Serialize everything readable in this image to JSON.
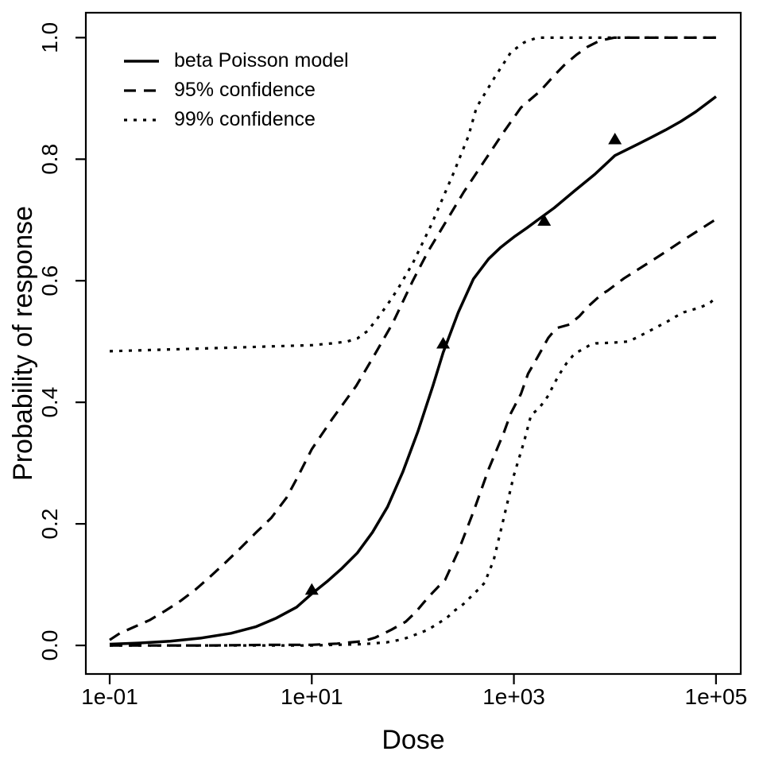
{
  "figure": {
    "background_color": "#ffffff",
    "foreground_color": "#000000"
  },
  "chart_data": {
    "type": "line",
    "title": "",
    "xlabel": "Dose",
    "ylabel": "Probability of response",
    "x_scale": "log10",
    "grid": false,
    "legend_position": "top-left",
    "xlim_log10": [
      -1.236,
      5.245
    ],
    "ylim": [
      -0.047,
      1.041
    ],
    "x_ticks": [
      {
        "label": "1e-01",
        "log10": -1
      },
      {
        "label": "1e+01",
        "log10": 1
      },
      {
        "label": "1e+03",
        "log10": 3
      },
      {
        "label": "1e+05",
        "log10": 5
      }
    ],
    "y_ticks": [
      {
        "label": "0.0",
        "value": 0.0
      },
      {
        "label": "0.2",
        "value": 0.2
      },
      {
        "label": "0.4",
        "value": 0.4
      },
      {
        "label": "0.6",
        "value": 0.6
      },
      {
        "label": "0.8",
        "value": 0.8
      },
      {
        "label": "1.0",
        "value": 1.0
      }
    ],
    "legend": [
      {
        "label": "beta Poisson model",
        "style": "solid"
      },
      {
        "label": "95% confidence",
        "style": "dashed"
      },
      {
        "label": "99% confidence",
        "style": "dotted"
      }
    ],
    "series": [
      {
        "name": "beta Poisson model",
        "style": "solid",
        "points": [
          [
            -1.0,
            0.002
          ],
          [
            -0.7,
            0.004
          ],
          [
            -0.4,
            0.007
          ],
          [
            -0.1,
            0.012
          ],
          [
            0.2,
            0.02
          ],
          [
            0.45,
            0.031
          ],
          [
            0.65,
            0.045
          ],
          [
            0.85,
            0.063
          ],
          [
            1.0,
            0.085
          ],
          [
            1.15,
            0.105
          ],
          [
            1.3,
            0.127
          ],
          [
            1.45,
            0.152
          ],
          [
            1.6,
            0.186
          ],
          [
            1.75,
            0.228
          ],
          [
            1.9,
            0.285
          ],
          [
            2.05,
            0.352
          ],
          [
            2.2,
            0.428
          ],
          [
            2.3,
            0.482
          ],
          [
            2.45,
            0.548
          ],
          [
            2.6,
            0.603
          ],
          [
            2.75,
            0.636
          ],
          [
            2.87,
            0.655
          ],
          [
            3.0,
            0.672
          ],
          [
            3.13,
            0.687
          ],
          [
            3.26,
            0.703
          ],
          [
            3.4,
            0.72
          ],
          [
            3.6,
            0.748
          ],
          [
            3.8,
            0.775
          ],
          [
            4.0,
            0.806
          ],
          [
            4.23,
            0.825
          ],
          [
            4.36,
            0.836
          ],
          [
            4.5,
            0.848
          ],
          [
            4.65,
            0.862
          ],
          [
            4.8,
            0.878
          ],
          [
            5.0,
            0.903
          ]
        ]
      },
      {
        "name": "95% confidence upper",
        "style": "dashed",
        "points": [
          [
            -1.0,
            0.009
          ],
          [
            -0.9,
            0.02
          ],
          [
            -0.75,
            0.031
          ],
          [
            -0.6,
            0.042
          ],
          [
            -0.45,
            0.057
          ],
          [
            -0.3,
            0.073
          ],
          [
            -0.15,
            0.092
          ],
          [
            0.0,
            0.114
          ],
          [
            0.15,
            0.137
          ],
          [
            0.3,
            0.161
          ],
          [
            0.45,
            0.186
          ],
          [
            0.6,
            0.21
          ],
          [
            0.75,
            0.243
          ],
          [
            0.86,
            0.277
          ],
          [
            1.0,
            0.323
          ],
          [
            1.2,
            0.372
          ],
          [
            1.44,
            0.427
          ],
          [
            1.6,
            0.472
          ],
          [
            1.8,
            0.53
          ],
          [
            2.0,
            0.6
          ],
          [
            2.15,
            0.648
          ],
          [
            2.32,
            0.695
          ],
          [
            2.5,
            0.745
          ],
          [
            2.72,
            0.8
          ],
          [
            2.9,
            0.845
          ],
          [
            3.07,
            0.885
          ],
          [
            3.26,
            0.912
          ],
          [
            3.4,
            0.938
          ],
          [
            3.5,
            0.955
          ],
          [
            3.62,
            0.972
          ],
          [
            3.73,
            0.985
          ],
          [
            3.85,
            0.995
          ],
          [
            3.99,
            1.0
          ],
          [
            5.0,
            1.0
          ]
        ]
      },
      {
        "name": "95% confidence lower",
        "style": "dashed",
        "points": [
          [
            -1.0,
            0.0
          ],
          [
            0.0,
            0.0
          ],
          [
            0.6,
            0.001
          ],
          [
            1.0,
            0.001
          ],
          [
            1.25,
            0.003
          ],
          [
            1.51,
            0.007
          ],
          [
            1.63,
            0.013
          ],
          [
            1.79,
            0.026
          ],
          [
            1.93,
            0.039
          ],
          [
            2.03,
            0.055
          ],
          [
            2.11,
            0.071
          ],
          [
            2.18,
            0.084
          ],
          [
            2.26,
            0.098
          ],
          [
            2.32,
            0.108
          ],
          [
            2.45,
            0.155
          ],
          [
            2.6,
            0.22
          ],
          [
            2.75,
            0.29
          ],
          [
            2.9,
            0.35
          ],
          [
            2.97,
            0.382
          ],
          [
            3.07,
            0.414
          ],
          [
            3.14,
            0.447
          ],
          [
            3.24,
            0.476
          ],
          [
            3.34,
            0.506
          ],
          [
            3.42,
            0.522
          ],
          [
            3.55,
            0.528
          ],
          [
            3.65,
            0.542
          ],
          [
            3.73,
            0.557
          ],
          [
            3.87,
            0.578
          ],
          [
            3.93,
            0.584
          ],
          [
            4.09,
            0.604
          ],
          [
            4.28,
            0.624
          ],
          [
            4.44,
            0.641
          ],
          [
            4.64,
            0.663
          ],
          [
            4.8,
            0.68
          ],
          [
            4.97,
            0.698
          ],
          [
            5.0,
            0.701
          ]
        ]
      },
      {
        "name": "99% confidence upper",
        "style": "dotted",
        "points": [
          [
            -1.0,
            0.484
          ],
          [
            -0.6,
            0.486
          ],
          [
            -0.2,
            0.488
          ],
          [
            0.2,
            0.49
          ],
          [
            0.6,
            0.492
          ],
          [
            1.0,
            0.494
          ],
          [
            1.2,
            0.497
          ],
          [
            1.35,
            0.5
          ],
          [
            1.45,
            0.505
          ],
          [
            1.55,
            0.517
          ],
          [
            1.65,
            0.538
          ],
          [
            1.75,
            0.561
          ],
          [
            1.85,
            0.586
          ],
          [
            2.0,
            0.629
          ],
          [
            2.18,
            0.691
          ],
          [
            2.4,
            0.776
          ],
          [
            2.55,
            0.838
          ],
          [
            2.63,
            0.885
          ],
          [
            2.8,
            0.932
          ],
          [
            2.97,
            0.976
          ],
          [
            3.1,
            0.992
          ],
          [
            3.23,
            1.0
          ],
          [
            5.0,
            1.0
          ]
        ]
      },
      {
        "name": "99% confidence lower",
        "style": "dotted",
        "points": [
          [
            -1.0,
            0.0
          ],
          [
            0.5,
            0.0
          ],
          [
            1.0,
            0.0
          ],
          [
            1.5,
            0.002
          ],
          [
            1.74,
            0.005
          ],
          [
            1.9,
            0.01
          ],
          [
            2.0,
            0.016
          ],
          [
            2.14,
            0.025
          ],
          [
            2.24,
            0.035
          ],
          [
            2.34,
            0.046
          ],
          [
            2.42,
            0.058
          ],
          [
            2.5,
            0.068
          ],
          [
            2.58,
            0.081
          ],
          [
            2.66,
            0.094
          ],
          [
            2.71,
            0.103
          ],
          [
            2.8,
            0.14
          ],
          [
            2.9,
            0.21
          ],
          [
            3.0,
            0.28
          ],
          [
            3.1,
            0.335
          ],
          [
            3.17,
            0.379
          ],
          [
            3.24,
            0.389
          ],
          [
            3.29,
            0.399
          ],
          [
            3.34,
            0.411
          ],
          [
            3.4,
            0.431
          ],
          [
            3.44,
            0.443
          ],
          [
            3.48,
            0.454
          ],
          [
            3.52,
            0.464
          ],
          [
            3.58,
            0.476
          ],
          [
            3.62,
            0.482
          ],
          [
            3.68,
            0.487
          ],
          [
            3.75,
            0.494
          ],
          [
            3.81,
            0.497
          ],
          [
            3.97,
            0.498
          ],
          [
            4.13,
            0.5
          ],
          [
            4.21,
            0.506
          ],
          [
            4.28,
            0.512
          ],
          [
            4.36,
            0.519
          ],
          [
            4.44,
            0.526
          ],
          [
            4.52,
            0.533
          ],
          [
            4.6,
            0.541
          ],
          [
            4.68,
            0.548
          ],
          [
            4.76,
            0.552
          ],
          [
            4.83,
            0.555
          ],
          [
            4.91,
            0.561
          ],
          [
            4.95,
            0.565
          ],
          [
            5.0,
            0.573
          ]
        ]
      }
    ],
    "observed_points": {
      "marker": "filled-triangle-up",
      "points": [
        [
          1.0,
          0.092
        ],
        [
          2.3,
          0.497
        ],
        [
          3.3,
          0.699
        ],
        [
          4.0,
          0.833
        ]
      ]
    }
  }
}
